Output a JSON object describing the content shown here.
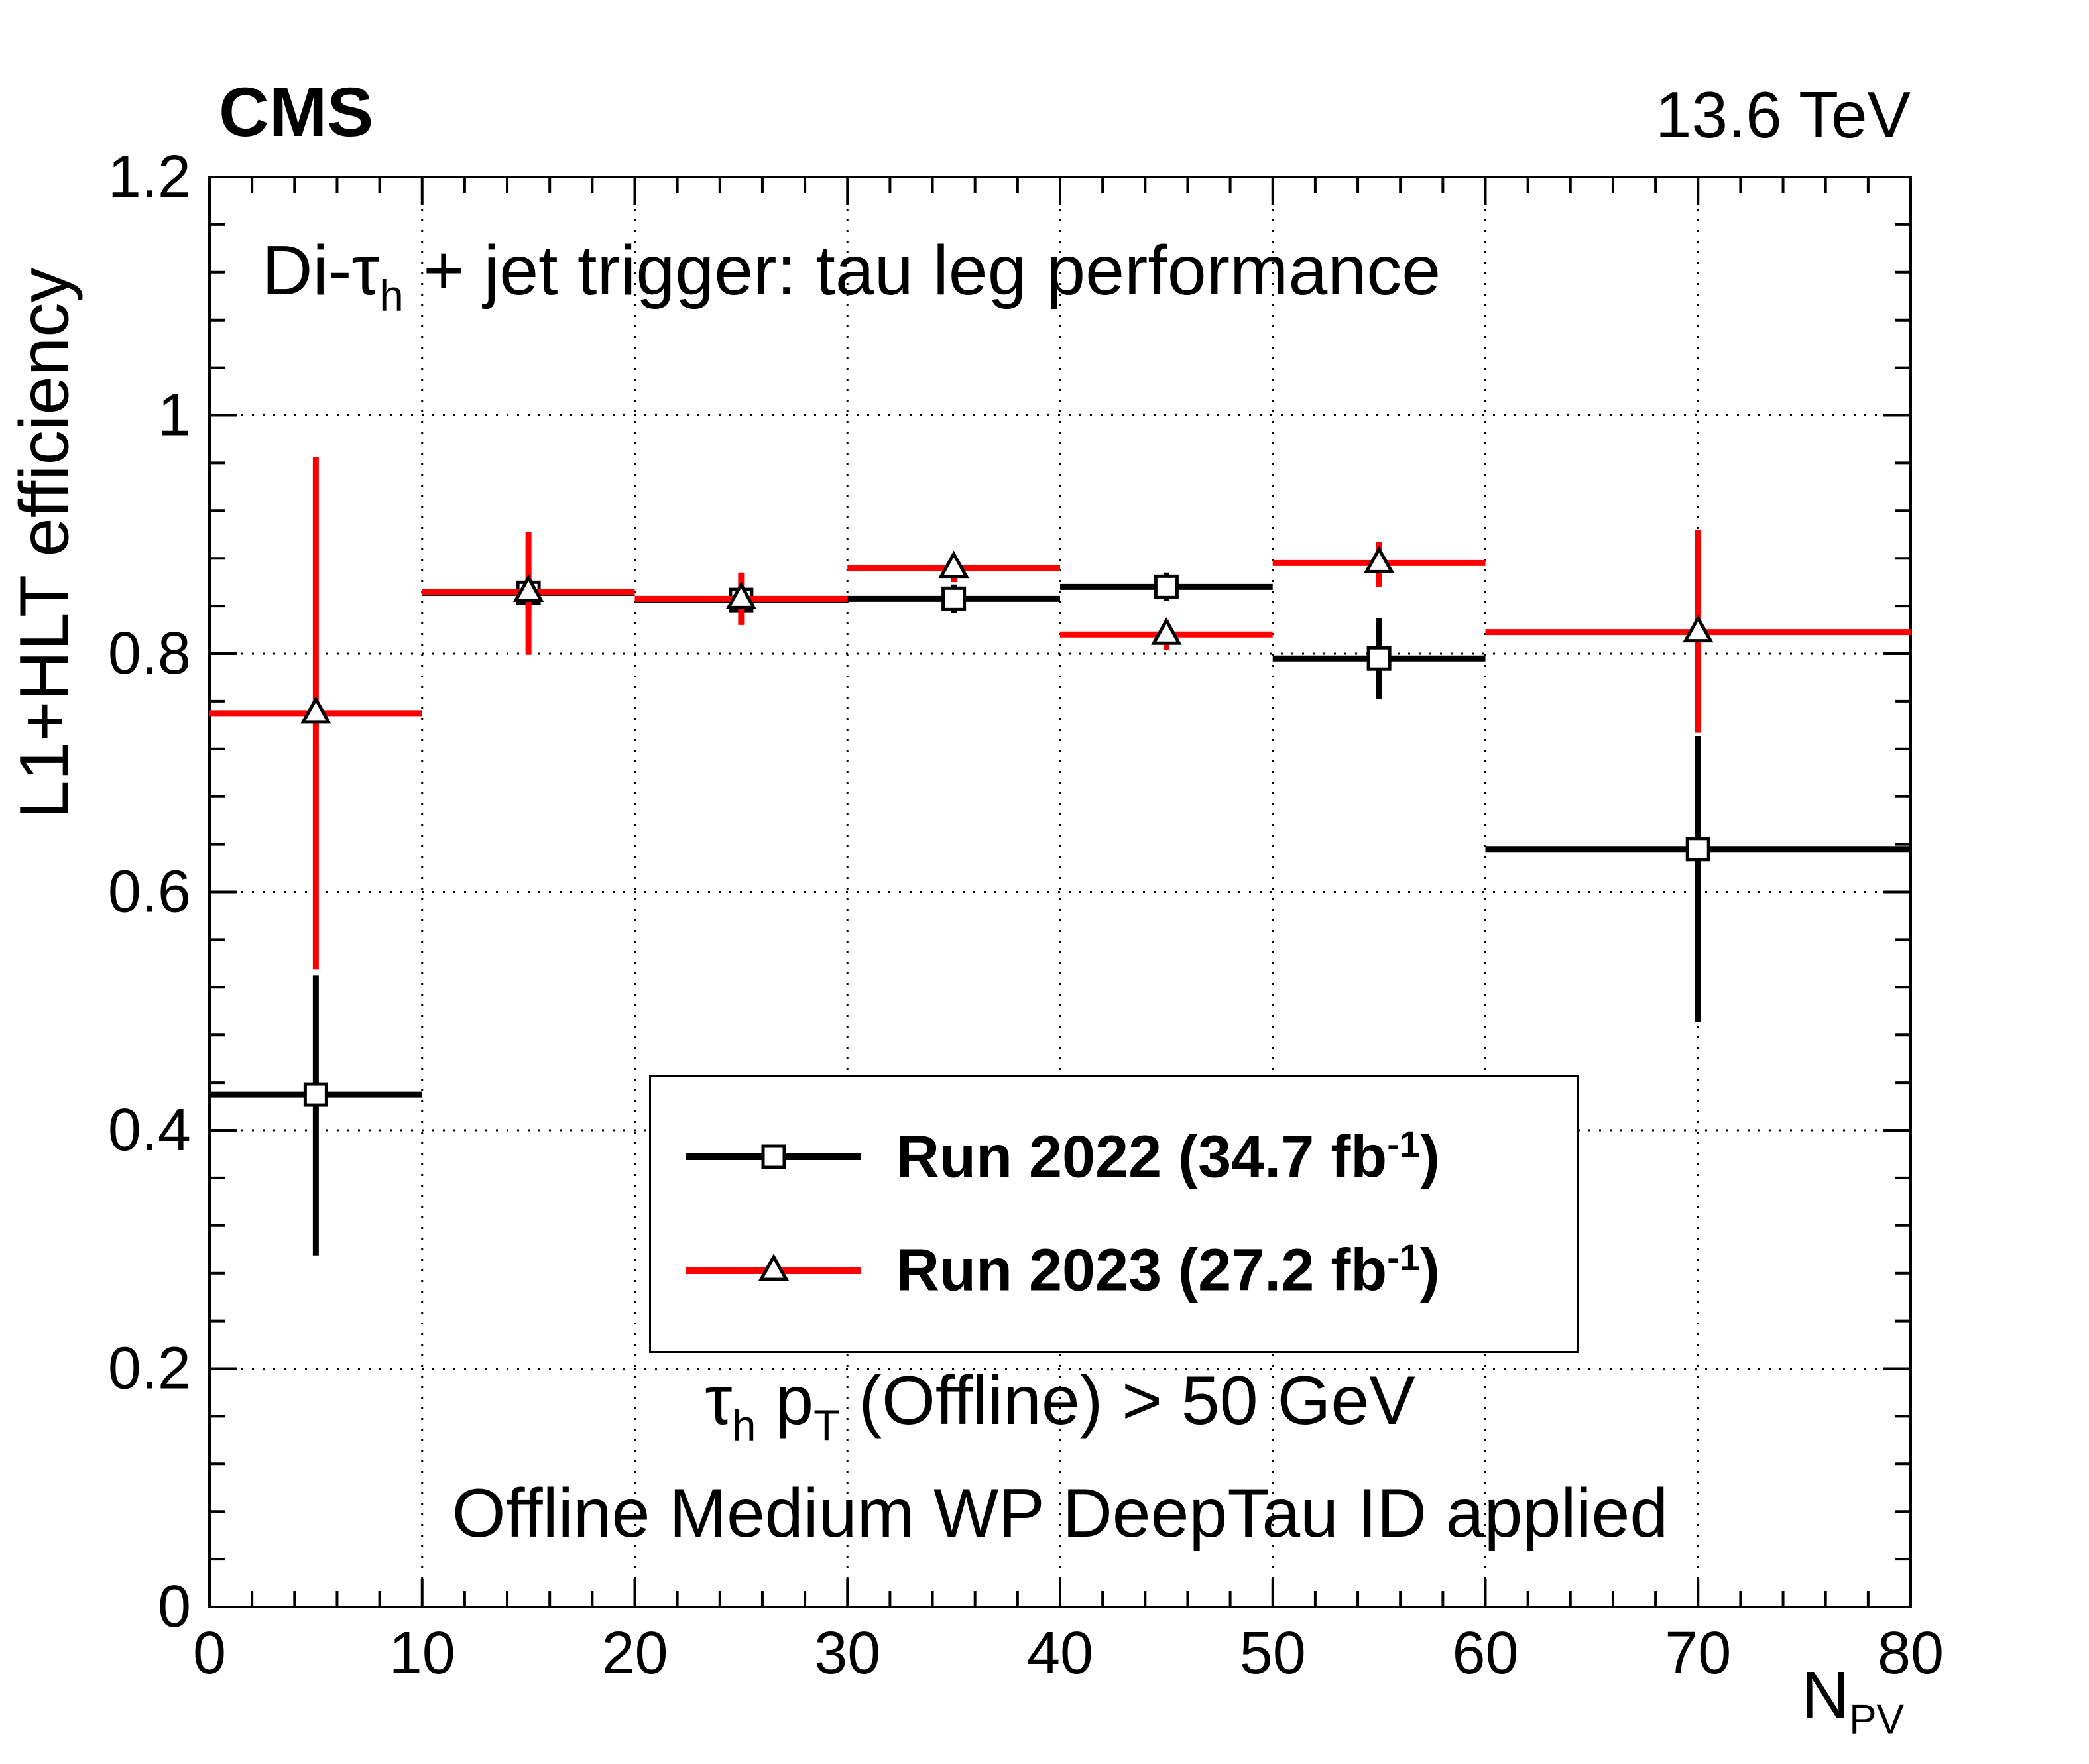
{
  "header": {
    "experiment": "CMS",
    "energy": "13.6 TeV"
  },
  "plot_title": {
    "pre": "Di-τ",
    "sub": "h",
    "post": " + jet trigger: tau leg performance"
  },
  "axes": {
    "y_title": "L1+HLT efficiency",
    "x_title": "N",
    "x_title_sub": "PV"
  },
  "legend": {
    "entries": [
      {
        "label_pre": "Run 2022 (34.7 fb",
        "label_sup": "-1",
        "label_post": ")"
      },
      {
        "label_pre": "Run 2023 (27.2 fb",
        "label_sup": "-1",
        "label_post": ")"
      }
    ]
  },
  "annotations": {
    "selection_tau": "τ",
    "selection_tau_sub": "h",
    "selection_pt": " p",
    "selection_pt_sub": "T",
    "selection_rest": " (Offline) > 50 GeV",
    "id_line": "Offline Medium WP DeepTau ID applied"
  },
  "chart_data": {
    "type": "scatter",
    "title": "Di-τh + jet trigger: tau leg performance",
    "xlabel": "N_PV",
    "ylabel": "L1+HLT efficiency",
    "xlim": [
      0,
      80
    ],
    "ylim": [
      0,
      1.2
    ],
    "x_major_ticks": [
      0,
      10,
      20,
      30,
      40,
      50,
      60,
      70,
      80
    ],
    "y_major_ticks": [
      0,
      0.2,
      0.4,
      0.6,
      0.8,
      1,
      1.2
    ],
    "x_minor_step": 2,
    "y_minor_step": 0.04,
    "grid": true,
    "legend_position": "center",
    "marker_fill": "#ffffff",
    "marker_outline": "#000000",
    "series": [
      {
        "name": "Run 2022 (34.7 fb-1)",
        "color": "#000000",
        "marker": "square",
        "points": [
          {
            "x": 5,
            "xlo": 0,
            "xhi": 10,
            "y": 0.43,
            "eyl": 0.135,
            "eyh": 0.1
          },
          {
            "x": 15,
            "xlo": 10,
            "xhi": 20,
            "y": 0.851,
            "eyl": 0.013,
            "eyh": 0.012
          },
          {
            "x": 25,
            "xlo": 20,
            "xhi": 30,
            "y": 0.845,
            "eyl": 0.01,
            "eyh": 0.01
          },
          {
            "x": 35,
            "xlo": 30,
            "xhi": 40,
            "y": 0.846,
            "eyl": 0.012,
            "eyh": 0.012
          },
          {
            "x": 45,
            "xlo": 40,
            "xhi": 50,
            "y": 0.856,
            "eyl": 0.012,
            "eyh": 0.012
          },
          {
            "x": 55,
            "xlo": 50,
            "xhi": 60,
            "y": 0.796,
            "eyl": 0.034,
            "eyh": 0.034
          },
          {
            "x": 70,
            "xlo": 60,
            "xhi": 80,
            "y": 0.636,
            "eyl": 0.145,
            "eyh": 0.095
          }
        ]
      },
      {
        "name": "Run 2023 (27.2 fb-1)",
        "color": "#ff0000",
        "marker": "triangle",
        "points": [
          {
            "x": 5,
            "xlo": 0,
            "xhi": 10,
            "y": 0.75,
            "eyl": 0.215,
            "eyh": 0.215
          },
          {
            "x": 15,
            "xlo": 10,
            "xhi": 20,
            "y": 0.852,
            "eyl": 0.053,
            "eyh": 0.05
          },
          {
            "x": 25,
            "xlo": 20,
            "xhi": 30,
            "y": 0.846,
            "eyl": 0.022,
            "eyh": 0.022
          },
          {
            "x": 35,
            "xlo": 30,
            "xhi": 40,
            "y": 0.872,
            "eyl": 0.012,
            "eyh": 0.01
          },
          {
            "x": 45,
            "xlo": 40,
            "xhi": 50,
            "y": 0.816,
            "eyl": 0.013,
            "eyh": 0.012
          },
          {
            "x": 55,
            "xlo": 50,
            "xhi": 60,
            "y": 0.876,
            "eyl": 0.02,
            "eyh": 0.018
          },
          {
            "x": 70,
            "xlo": 60,
            "xhi": 80,
            "y": 0.818,
            "eyl": 0.084,
            "eyh": 0.086
          }
        ]
      }
    ]
  }
}
